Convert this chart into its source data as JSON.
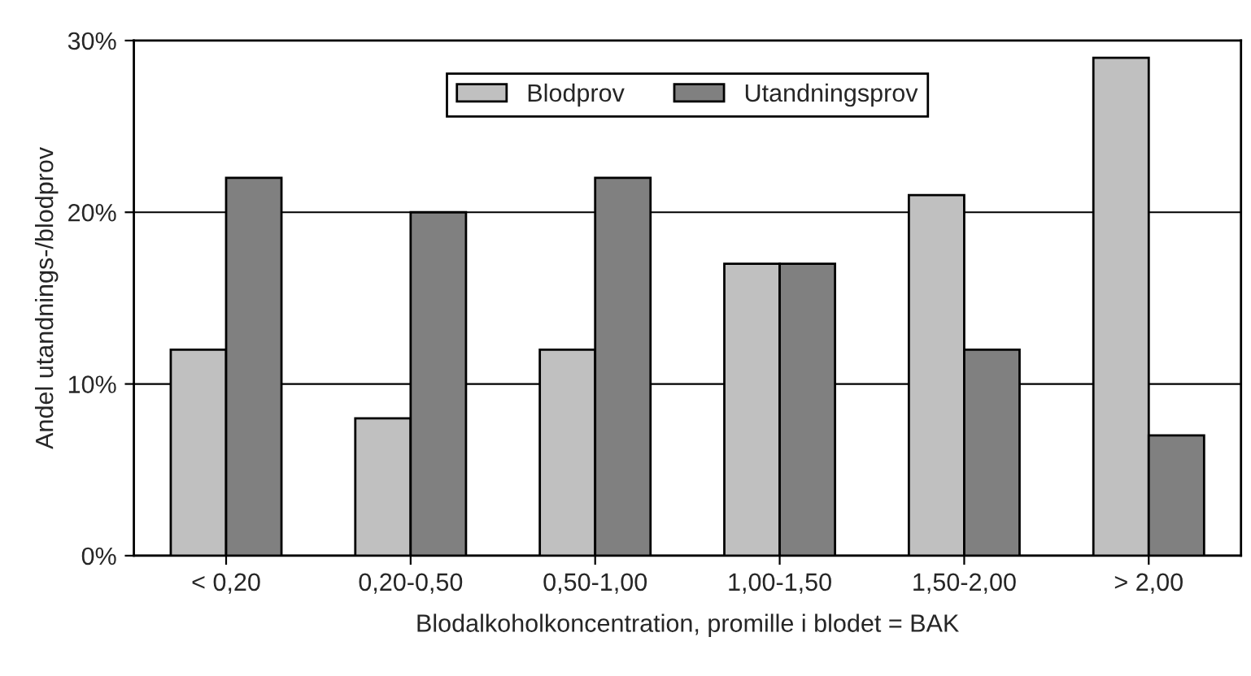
{
  "chart_data": {
    "type": "bar",
    "xlabel": "Blodalkoholkoncentration, promille i blodet = BAK",
    "ylabel": "Andel utandnings-/blodprov",
    "categories": [
      "< 0,20",
      "0,20-0,50",
      "0,50-1,00",
      "1,00-1,50",
      "1,50-2,00",
      "> 2,00"
    ],
    "series": [
      {
        "name": "Blodprov",
        "color": "#c0c0c0",
        "values": [
          12,
          8,
          12,
          17,
          21,
          29
        ]
      },
      {
        "name": "Utandningsprov",
        "color": "#808080",
        "values": [
          22,
          20,
          22,
          17,
          12,
          7
        ]
      }
    ],
    "ylim": [
      0,
      30
    ],
    "yticks": [
      {
        "value": 0,
        "label": "0%"
      },
      {
        "value": 10,
        "label": "10%"
      },
      {
        "value": 20,
        "label": "20%"
      },
      {
        "value": 30,
        "label": "30%"
      }
    ],
    "grid": "y",
    "legend": "top"
  }
}
